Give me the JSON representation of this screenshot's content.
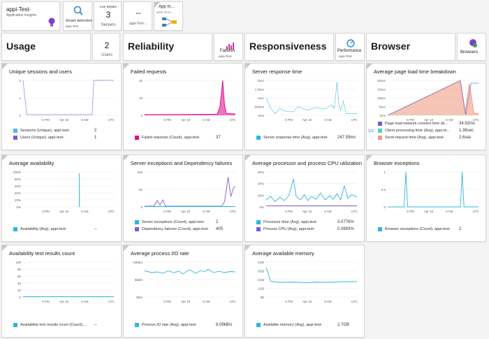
{
  "top_tiles": {
    "appi": {
      "title": "appi-Test-",
      "subtitle": "Application Insights"
    },
    "smart": {
      "label": "Smart detection",
      "sub": "appi-Test"
    },
    "live": {
      "header": "Live Stream",
      "value": "3",
      "label": "Servers"
    },
    "dash": {
      "value": "--",
      "label": "appi-Test-..."
    },
    "appmap": {
      "title": "App m...",
      "sub": "APPI-TEST-..."
    }
  },
  "sections": {
    "usage": {
      "title": "Usage",
      "users_value": "2",
      "users_label": "Users"
    },
    "reliability": {
      "title": "Reliability",
      "failures_label": "Failures",
      "failures_sub": "appi-Test-"
    },
    "responsiveness": {
      "title": "Responsiveness",
      "perf_label": "Performance",
      "perf_sub": "appi-Test-"
    },
    "browser": {
      "title": "Browser",
      "browsers_label": "Browsers"
    }
  },
  "x_ticks": [
    "6 PM",
    "Apr 10",
    "6 AM",
    "UTC"
  ],
  "charts": [
    {
      "id": "sessions",
      "title": "Unique sessions and users",
      "y_ticks": [
        "2",
        "1",
        "0"
      ],
      "legend": [
        {
          "label": "Sessions (Unique), appi-test-",
          "value": "2",
          "color": "#56b4e9"
        },
        {
          "label": "Users (Unique), appi-test-",
          "value": "1",
          "color": "#7a5cd6"
        }
      ]
    },
    {
      "id": "failed",
      "title": "Failed requests",
      "y_ticks": [
        "20",
        "10",
        "0"
      ],
      "legend": [
        {
          "label": "Failed requests (Count), appi-test-",
          "value": "37",
          "color": "#e3008c"
        }
      ]
    },
    {
      "id": "response",
      "title": "Server response time",
      "y_ticks": [
        "2sec",
        "1.5sec",
        "1sec",
        "500ms",
        "0ms"
      ],
      "legend": [
        {
          "label": "Server response time (Avg), appi-test-",
          "value": "247.59ms",
          "color": "#2fb6dc"
        }
      ]
    },
    {
      "id": "pageload",
      "title": "Average page load time breakdown",
      "y_ticks": [
        "20sec",
        "15sec",
        "10sec",
        "5sec",
        "0ms"
      ],
      "pager": "1/2",
      "legend": [
        {
          "label": "Page load network connect time (A...",
          "value": "34.92ms",
          "color": "#7a5cd6"
        },
        {
          "label": "Client processing time (Avg), appi-te...",
          "value": "1.36sec",
          "color": "#4fd1c5"
        },
        {
          "label": "Send request time (Avg), appi-test-",
          "value": "2.6sec",
          "color": "#f0967a"
        }
      ]
    },
    {
      "id": "availability",
      "title": "Average availability",
      "y_ticks": [
        "100%",
        "80%",
        "60%",
        "40%",
        "20%",
        "0%"
      ],
      "legend": [
        {
          "label": "Availability (Avg), appi-test-",
          "value": "--",
          "color": "#2fb6dc"
        }
      ]
    },
    {
      "id": "exceptions",
      "title": "Server exceptions and Dependency failures",
      "y_ticks": [
        "100",
        "50",
        "0"
      ],
      "legend": [
        {
          "label": "Server exceptions (Count), appi-test-",
          "value": "2",
          "color": "#2fb6dc"
        },
        {
          "label": "Dependency failures (Count), appi-test-",
          "value": "405",
          "color": "#7a5cd6"
        }
      ]
    },
    {
      "id": "cpu",
      "title": "Average processor and process CPU utilization",
      "y_ticks": [
        "60%",
        "40%",
        "20%",
        "0%"
      ],
      "legend": [
        {
          "label": "Processor time (Avg), appi-test-",
          "value": "3.0776%",
          "color": "#2fb6dc"
        },
        {
          "label": "Process CPU (Avg), appi-test-",
          "value": "0.0693%",
          "color": "#7a5cd6"
        }
      ]
    },
    {
      "id": "browserexc",
      "title": "Browser exceptions",
      "y_ticks": [
        "1",
        "0.5",
        "0"
      ],
      "legend": [
        {
          "label": "Browser exceptions (Count), appi-test-",
          "value": "2",
          "color": "#2fb6dc"
        }
      ]
    },
    {
      "id": "avtest",
      "title": "Availability test results count",
      "y_ticks": [
        "100",
        "80",
        "60",
        "40",
        "20",
        "0"
      ],
      "legend": [
        {
          "label": "Availability test results count (Count),...",
          "value": "--",
          "color": "#2fb6dc"
        }
      ]
    },
    {
      "id": "io",
      "title": "Average process I/O rate",
      "y_ticks": [
        "10kB/s",
        "5kB/s",
        "0B/s"
      ],
      "legend": [
        {
          "label": "Process IO rate (Avg), appi-test-",
          "value": "8.09kB/s",
          "color": "#2fb6dc"
        }
      ]
    },
    {
      "id": "memory",
      "title": "Average available memory",
      "y_ticks": [
        "4GB",
        "3GB",
        "2GB",
        "1GB",
        "0B"
      ],
      "legend": [
        {
          "label": "Available memory (Avg), appi-test-",
          "value": "2.7GB",
          "color": "#2fb6dc"
        }
      ]
    }
  ]
}
